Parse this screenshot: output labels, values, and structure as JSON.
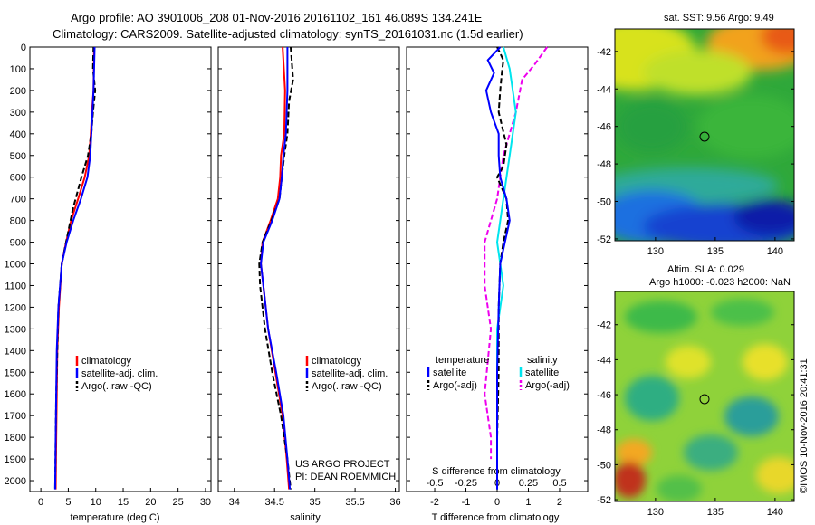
{
  "header": {
    "line1": "Argo profile: AO 3901006_208 01-Nov-2016 20161102_161 46.089S 134.241E",
    "line2": "Climatology: CARS2009. Satellite-adjusted climatology: synTS_20161031.nc (1.5d earlier)"
  },
  "depth_axis": {
    "ticks": [
      "0",
      "100",
      "200",
      "300",
      "400",
      "500",
      "600",
      "700",
      "800",
      "900",
      "1000",
      "1100",
      "1200",
      "1300",
      "1400",
      "1500",
      "1600",
      "1700",
      "1800",
      "1900",
      "2000"
    ]
  },
  "colors": {
    "climatology": "#ff0000",
    "satellite": "#0000ff",
    "argo": "#000000",
    "sal_satellite": "#00e5ee",
    "sal_argo": "#ee00ee"
  },
  "panel_temp": {
    "xlabel": "temperature (deg C)",
    "xticks": [
      "0",
      "5",
      "10",
      "15",
      "20",
      "25",
      "30"
    ],
    "legend": [
      "climatology",
      "satellite-adj. clim.",
      "Argo(..raw -QC)"
    ]
  },
  "panel_sal": {
    "xlabel": "salinity",
    "xticks": [
      "34",
      "34.5",
      "35",
      "35.5",
      "36"
    ],
    "legend": [
      "climatology",
      "satellite-adj. clim.",
      "Argo(..raw -QC)"
    ],
    "note1": "US ARGO PROJECT",
    "note2": "PI: DEAN ROEMMICH"
  },
  "panel_diff": {
    "xlabel": "T difference from climatology",
    "top_label": "S difference from climatology",
    "xticks_t": [
      "-2",
      "-1",
      "0",
      "1",
      "2"
    ],
    "xticks_s": [
      "-0.5",
      "-0.25",
      "0",
      "0.25",
      "0.5"
    ],
    "legend_temp_head": "temperature",
    "legend_temp": [
      "satellite",
      "Argo(-adj)"
    ],
    "legend_sal_head": "salinity",
    "legend_sal": [
      "satellite",
      "Argo(-adj)"
    ]
  },
  "map_sst": {
    "title": "sat. SST: 9.56 Argo: 9.49",
    "yticks": [
      "-42",
      "-44",
      "-46",
      "-48",
      "-50",
      "-52"
    ],
    "xticks": [
      "130",
      "135",
      "140"
    ]
  },
  "map_sla": {
    "title1": "Altim. SLA: 0.029",
    "title2": "Argo h1000: -0.023 h2000: NaN",
    "yticks": [
      "-42",
      "-44",
      "-46",
      "-48",
      "-50",
      "-52"
    ],
    "xticks": [
      "130",
      "135",
      "140"
    ]
  },
  "credit": "©IMOS 10-Nov-2016 20:41:31",
  "chart_data": [
    {
      "type": "line",
      "title": "",
      "xlabel": "temperature (deg C)",
      "ylabel": "",
      "xlim": [
        -2,
        31
      ],
      "ylim": [
        2050,
        0
      ],
      "series": [
        {
          "name": "climatology",
          "x": [
            9.7,
            9.6,
            9.3,
            9.1,
            8.8,
            8.0,
            6.8,
            5.5,
            4.6,
            3.8,
            3.3,
            3.0,
            2.9,
            2.8,
            2.7
          ],
          "y": [
            0,
            200,
            300,
            400,
            500,
            600,
            700,
            800,
            900,
            1000,
            1200,
            1400,
            1600,
            1800,
            2040
          ]
        },
        {
          "name": "satellite-adj. clim.",
          "x": [
            9.8,
            9.6,
            9.4,
            9.2,
            9.0,
            8.5,
            7.3,
            5.9,
            4.7,
            3.8,
            3.2,
            2.9,
            2.8,
            2.7,
            2.6
          ],
          "y": [
            0,
            200,
            300,
            400,
            500,
            600,
            700,
            800,
            900,
            1000,
            1200,
            1400,
            1600,
            1800,
            2040
          ]
        },
        {
          "name": "Argo(..raw -QC)",
          "x": [
            9.6,
            9.5,
            9.9,
            9.5,
            9.2,
            8.6,
            7.4,
            5.8,
            4.6,
            3.8,
            3.2,
            3.0,
            2.8,
            2.7,
            2.6
          ],
          "y": [
            0,
            100,
            200,
            300,
            400,
            500,
            600,
            750,
            900,
            1000,
            1200,
            1400,
            1600,
            1800,
            2040
          ]
        }
      ]
    },
    {
      "type": "line",
      "title": "",
      "xlabel": "salinity",
      "ylabel": "",
      "xlim": [
        33.8,
        36.05
      ],
      "ylim": [
        2050,
        0
      ],
      "series": [
        {
          "name": "climatology",
          "x": [
            34.6,
            34.63,
            34.62,
            34.58,
            34.57,
            34.54,
            34.45,
            34.35,
            34.33,
            34.36,
            34.42,
            34.51,
            34.6,
            34.65,
            34.68
          ],
          "y": [
            0,
            200,
            400,
            500,
            600,
            700,
            800,
            900,
            1000,
            1100,
            1300,
            1500,
            1700,
            1900,
            2040
          ]
        },
        {
          "name": "satellite-adj. clim.",
          "x": [
            34.66,
            34.66,
            34.64,
            34.61,
            34.59,
            34.56,
            34.47,
            34.36,
            34.33,
            34.36,
            34.42,
            34.52,
            34.61,
            34.66,
            34.69
          ],
          "y": [
            0,
            200,
            400,
            500,
            600,
            700,
            800,
            900,
            1000,
            1100,
            1300,
            1500,
            1700,
            1900,
            2040
          ]
        },
        {
          "name": "Argo(..raw -QC)",
          "x": [
            34.7,
            34.73,
            34.68,
            34.66,
            34.62,
            34.59,
            34.56,
            34.46,
            34.35,
            34.31,
            34.32,
            34.38,
            34.47,
            34.58,
            34.66,
            34.7
          ],
          "y": [
            0,
            150,
            250,
            400,
            500,
            600,
            700,
            800,
            900,
            1000,
            1100,
            1300,
            1500,
            1700,
            1900,
            2040
          ]
        }
      ]
    },
    {
      "type": "line",
      "title": "",
      "xlabel": "T difference from climatology",
      "ylabel": "",
      "xlim": [
        -2.9,
        2.9
      ],
      "ylim": [
        2050,
        0
      ],
      "series": [
        {
          "name": "temperature satellite",
          "x": [
            0.1,
            -0.3,
            -0.1,
            -0.35,
            -0.2,
            0.05,
            0.05,
            0.1,
            0.3,
            0.4,
            0.25,
            0.1,
            0.05,
            0.0,
            0.0,
            0.0
          ],
          "y": [
            0,
            60,
            120,
            200,
            300,
            400,
            500,
            600,
            700,
            800,
            900,
            1000,
            1200,
            1500,
            1800,
            2040
          ]
        },
        {
          "name": "temperature Argo(-adj)",
          "x": [
            0.0,
            0.2,
            0.15,
            0.1,
            0.05,
            0.3,
            0.2,
            0.0,
            0.3,
            0.35,
            0.2,
            0.1,
            0.05,
            0.05,
            0.0,
            0.0
          ],
          "y": [
            0,
            60,
            120,
            200,
            300,
            450,
            550,
            600,
            700,
            800,
            900,
            1000,
            1200,
            1500,
            1800,
            2040
          ]
        },
        {
          "name": "salinity satellite",
          "x": [
            0.05,
            0.1,
            0.15,
            0.1,
            0.05,
            0.0,
            0.05,
            0.0,
            0.0,
            0.0,
            0.0
          ],
          "y": [
            0,
            100,
            300,
            500,
            700,
            900,
            1100,
            1300,
            1500,
            1800,
            2040
          ]
        },
        {
          "name": "salinity Argo(-adj)",
          "x": [
            0.4,
            0.3,
            0.2,
            0.15,
            0.05,
            0.0,
            -0.1,
            -0.1,
            -0.05,
            -0.1,
            -0.05,
            -0.05
          ],
          "y": [
            0,
            80,
            150,
            300,
            500,
            700,
            900,
            1100,
            1300,
            1600,
            1800,
            1900
          ]
        }
      ]
    }
  ]
}
